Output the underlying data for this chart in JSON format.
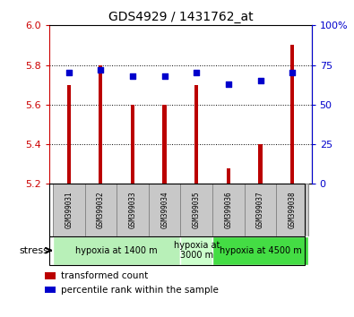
{
  "title": "GDS4929 / 1431762_at",
  "samples": [
    "GSM399031",
    "GSM399032",
    "GSM399033",
    "GSM399034",
    "GSM399035",
    "GSM399036",
    "GSM399037",
    "GSM399038"
  ],
  "bar_values": [
    5.7,
    5.8,
    5.6,
    5.6,
    5.7,
    5.28,
    5.4,
    5.9
  ],
  "percentile_values": [
    70,
    72,
    68,
    68,
    70,
    63,
    65,
    70
  ],
  "ylim": [
    5.2,
    6.0
  ],
  "y2lim": [
    0,
    100
  ],
  "yticks": [
    5.2,
    5.4,
    5.6,
    5.8,
    6.0
  ],
  "y2ticks": [
    0,
    25,
    50,
    75,
    100
  ],
  "bar_color": "#bb0000",
  "dot_color": "#0000cc",
  "bar_width": 0.12,
  "group_boundaries": [
    {
      "start": 0,
      "end": 4,
      "label": "hypoxia at 1400 m",
      "color": "#b8f0b8"
    },
    {
      "start": 4,
      "end": 5,
      "label": "hypoxia at\n3000 m",
      "color": "#ccffcc"
    },
    {
      "start": 5,
      "end": 8,
      "label": "hypoxia at 4500 m",
      "color": "#44dd44"
    }
  ],
  "legend_items": [
    {
      "label": "transformed count",
      "color": "#bb0000"
    },
    {
      "label": "percentile rank within the sample",
      "color": "#0000cc"
    }
  ],
  "stress_label": "stress",
  "yticklabel_color": "#cc0000",
  "y2ticklabel_color": "#0000cc",
  "sample_box_color": "#c8c8c8",
  "sample_box_edge": "#888888"
}
